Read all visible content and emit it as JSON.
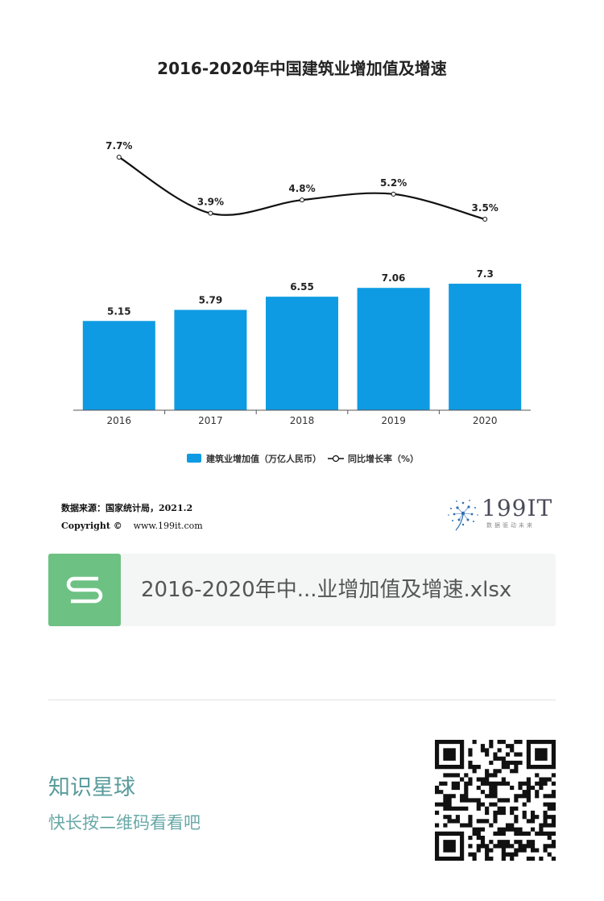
{
  "chart_data": {
    "type": "bar",
    "title": "2016-2020年中国建筑业增加值及增速",
    "categories": [
      "2016",
      "2017",
      "2018",
      "2019",
      "2020"
    ],
    "series": [
      {
        "name": "建筑业增加值（万亿人民币）",
        "type": "bar",
        "values": [
          5.15,
          5.79,
          6.55,
          7.06,
          7.3
        ],
        "labels": [
          "5.15",
          "5.79",
          "6.55",
          "7.06",
          "7.3"
        ],
        "color": "#0e9be3"
      },
      {
        "name": "同比增长率（%）",
        "type": "line",
        "values": [
          7.7,
          3.9,
          4.8,
          5.2,
          3.5
        ],
        "labels": [
          "7.7%",
          "3.9%",
          "4.8%",
          "5.2%",
          "3.5%"
        ],
        "color": "#111111"
      }
    ],
    "legend_position": "bottom",
    "grid": false
  },
  "source": {
    "text": "数据来源：国家统计局，2021.2",
    "copyright": "Copyright ©",
    "url": "www.199it.com"
  },
  "logo": {
    "brand": "199IT",
    "tagline": "数据驱动未来"
  },
  "file_card": {
    "icon": "spreadsheet-s-icon",
    "name": "2016-2020年中...业增加值及增速.xlsx",
    "icon_color": "#6dc183"
  },
  "footer": {
    "title": "知识星球",
    "subtitle": "快长按二维码看看吧"
  },
  "qr": {
    "icon": "qr-code-icon"
  }
}
